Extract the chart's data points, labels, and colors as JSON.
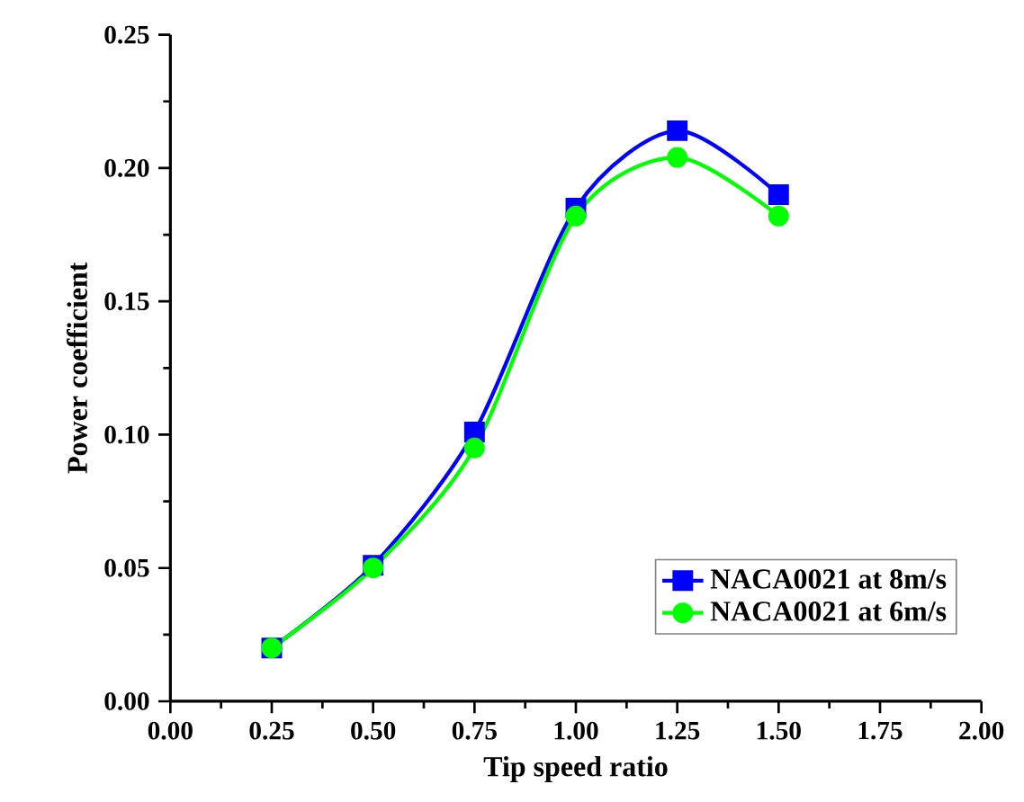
{
  "chart_data": {
    "type": "line",
    "xlabel": "Tip speed ratio",
    "ylabel": "Power coefficient",
    "x": [
      0.25,
      0.5,
      0.75,
      1.0,
      1.25,
      1.5
    ],
    "series": [
      {
        "name": "NACA0021 at 8m/s",
        "color": "#0000ff",
        "marker": "square",
        "values": [
          0.02,
          0.051,
          0.101,
          0.185,
          0.214,
          0.19
        ]
      },
      {
        "name": "NACA0021 at 6m/s",
        "color": "#00ff00",
        "marker": "circle",
        "values": [
          0.02,
          0.05,
          0.095,
          0.182,
          0.204,
          0.182
        ]
      }
    ],
    "xlim": [
      0,
      2
    ],
    "ylim": [
      0,
      0.25
    ],
    "xticks": [
      {
        "value": 0,
        "label": "0.00"
      },
      {
        "value": 0.25,
        "label": "0.25"
      },
      {
        "value": 0.5,
        "label": "0.50"
      },
      {
        "value": 0.75,
        "label": "0.75"
      },
      {
        "value": 1,
        "label": "1.00"
      },
      {
        "value": 1.25,
        "label": "1.25"
      },
      {
        "value": 1.5,
        "label": "1.50"
      },
      {
        "value": 1.75,
        "label": "1.75"
      },
      {
        "value": 2,
        "label": "2.00"
      }
    ],
    "yticks": [
      {
        "value": 0,
        "label": "0.00"
      },
      {
        "value": 0.05,
        "label": "0.05"
      },
      {
        "value": 0.1,
        "label": "0.10"
      },
      {
        "value": 0.15,
        "label": "0.15"
      },
      {
        "value": 0.2,
        "label": "0.20"
      },
      {
        "value": 0.25,
        "label": "0.25"
      }
    ],
    "legend": "bottom right",
    "grid": false,
    "line_style": "solid"
  }
}
